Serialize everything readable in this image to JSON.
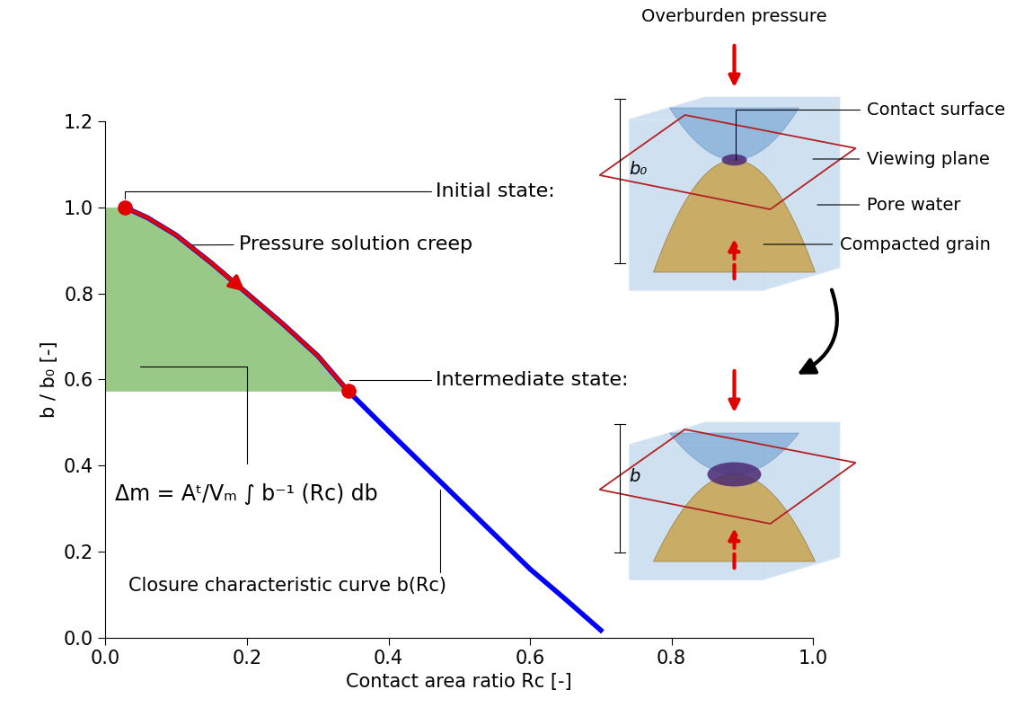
{
  "chart_data": {
    "type": "line",
    "xlabel": "Contact area ratio Rc [-]",
    "ylabel": "b / b₀ [-]",
    "xlim": [
      0,
      1
    ],
    "ylim": [
      0,
      1.2
    ],
    "xticks": [
      {
        "value": 0,
        "label": "0.0"
      },
      {
        "value": 0.2,
        "label": "0.2"
      },
      {
        "value": 0.4,
        "label": "0.4"
      },
      {
        "value": 0.6,
        "label": "0.6"
      },
      {
        "value": 0.8,
        "label": "0.8"
      },
      {
        "value": 1,
        "label": "1.0"
      }
    ],
    "yticks": [
      {
        "value": 0,
        "label": "0.0"
      },
      {
        "value": 0.2,
        "label": "0.2"
      },
      {
        "value": 0.4,
        "label": "0.4"
      },
      {
        "value": 0.6,
        "label": "0.6"
      },
      {
        "value": 0.8,
        "label": "0.8"
      },
      {
        "value": 1,
        "label": "1.0"
      },
      {
        "value": 1.2,
        "label": "1.2"
      }
    ],
    "series": [
      {
        "name": "Closure characteristic curve b(Rc)",
        "color": "#0000ff",
        "line_style": "solid",
        "x": [
          0.027,
          0.06,
          0.1,
          0.15,
          0.2,
          0.25,
          0.3,
          0.343,
          0.4,
          0.45,
          0.5,
          0.55,
          0.6,
          0.65,
          0.7
        ],
        "values": [
          1.0,
          0.975,
          0.935,
          0.87,
          0.8,
          0.73,
          0.655,
          0.573,
          0.48,
          0.4,
          0.32,
          0.24,
          0.16,
          0.09,
          0.018
        ]
      },
      {
        "name": "Pressure solution creep",
        "color": "#e00000",
        "line_style": "solid",
        "x": [
          0.027,
          0.06,
          0.1,
          0.15,
          0.2,
          0.25,
          0.3,
          0.343
        ],
        "values": [
          1.0,
          0.975,
          0.935,
          0.87,
          0.8,
          0.73,
          0.655,
          0.573
        ]
      }
    ],
    "states": [
      {
        "label": "Initial state:",
        "x": 0.027,
        "y": 1.0,
        "color": "#e00000"
      },
      {
        "label": "Intermediate state:",
        "x": 0.343,
        "y": 0.573,
        "color": "#e00000"
      }
    ],
    "area": {
      "label": "Δm = Aᵗ/Vₘ ∫ b⁻¹ (Rc) db",
      "color": "#98c987"
    },
    "diagram": {
      "title": "Overburden pressure",
      "labels": [
        "Contact surface",
        "Viewing plane",
        "Pore water",
        "Compacted grain"
      ],
      "initial_height": "b₀",
      "current_height": "b"
    }
  }
}
